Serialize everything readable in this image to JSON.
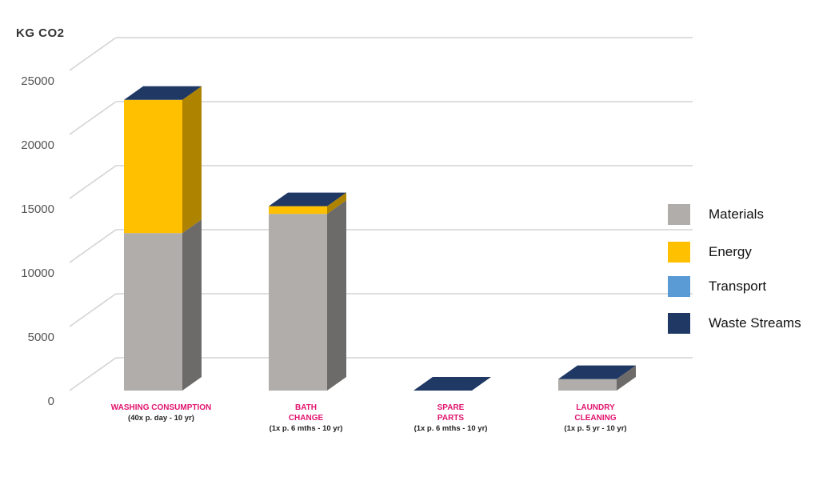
{
  "chart_data": {
    "type": "bar",
    "subtype": "stacked-3d",
    "ylabel": "KG CO2",
    "ylim": [
      0,
      25000
    ],
    "yticks": [
      0,
      5000,
      10000,
      15000,
      20000,
      25000
    ],
    "grid": true,
    "legend_position": "right",
    "categories": [
      {
        "label": "WASHING CONSUMPTION",
        "sub": "(40x p. day - 10 yr)"
      },
      {
        "label": "BATH|CHANGE",
        "sub": "(1x p. 6 mths - 10 yr)"
      },
      {
        "label": "SPARE|PARTS",
        "sub": "(1x p. 6 mths - 10 yr)"
      },
      {
        "label": "LAUNDRY|CLEANING",
        "sub": "(1x p. 5 yr - 10 yr)"
      }
    ],
    "series": [
      {
        "name": "Materials",
        "color": "#b0adab",
        "values": [
          12300,
          13800,
          0,
          900
        ]
      },
      {
        "name": "Energy",
        "color": "#ffc000",
        "values": [
          10400,
          600,
          0,
          0
        ]
      },
      {
        "name": "Transport",
        "color": "#5b9bd5",
        "values": [
          0,
          0,
          0,
          0
        ]
      },
      {
        "name": "Waste Streams",
        "color": "#1f3864",
        "values": [
          0,
          0,
          0,
          0
        ]
      }
    ]
  }
}
